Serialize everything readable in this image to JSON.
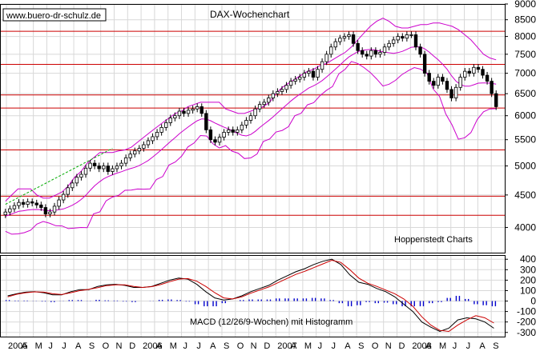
{
  "watermark": "www.buero-dr-schulz.de",
  "colors": {
    "background": "#ffffff",
    "grid": "#d8d8d8",
    "candle": "#000000",
    "bollinger": "#cc00cc",
    "horizontal_lines": "#cc0000",
    "trend_line": "#00aa00",
    "macd_line": "#000000",
    "signal_line": "#cc0000",
    "histogram": "#0000cc"
  },
  "chart_data": [
    {
      "type": "candlestick",
      "title": "DAX-Wochenchart",
      "source_label": "Hoppenstedt Charts",
      "x_ticks": [
        "2005",
        "A",
        "M",
        "J",
        "J",
        "A",
        "S",
        "O",
        "N",
        "D",
        "2006",
        "A",
        "M",
        "J",
        "J",
        "A",
        "S",
        "O",
        "N",
        "D",
        "2007",
        "A",
        "M",
        "J",
        "J",
        "A",
        "S",
        "O",
        "N",
        "D",
        "2008",
        "A",
        "M",
        "J",
        "J",
        "A",
        "S"
      ],
      "y_ticks": [
        4000,
        4500,
        5000,
        5500,
        6000,
        6500,
        7000,
        7500,
        8000,
        8500,
        9000
      ],
      "y_scale": "log",
      "ylim": [
        3650,
        9000
      ],
      "horizontal_levels": [
        4180,
        4480,
        5300,
        6170,
        6470,
        7230,
        8150
      ],
      "trend_line": {
        "from": [
          "2005-01",
          4350
        ],
        "to": [
          "2005-12",
          5330
        ]
      },
      "weekly_close": [
        4230,
        4280,
        4330,
        4380,
        4350,
        4390,
        4370,
        4340,
        4300,
        4200,
        4230,
        4320,
        4420,
        4510,
        4620,
        4700,
        4800,
        4850,
        4960,
        5050,
        5000,
        4950,
        5000,
        4900,
        4950,
        5000,
        5050,
        5150,
        5220,
        5280,
        5330,
        5400,
        5480,
        5560,
        5650,
        5750,
        5850,
        5950,
        6000,
        6100,
        6050,
        6120,
        6150,
        6200,
        6050,
        5700,
        5500,
        5450,
        5550,
        5650,
        5700,
        5650,
        5700,
        5800,
        5900,
        6000,
        6150,
        6250,
        6300,
        6400,
        6500,
        6550,
        6600,
        6700,
        6800,
        6850,
        6900,
        7000,
        7050,
        6900,
        7100,
        7300,
        7500,
        7700,
        7850,
        7950,
        8000,
        8050,
        7800,
        7600,
        7500,
        7450,
        7600,
        7500,
        7550,
        7700,
        7800,
        7900,
        8000,
        7950,
        8050,
        8050,
        7700,
        7500,
        7000,
        6800,
        6700,
        6900,
        6800,
        6600,
        6400,
        6650,
        6900,
        7050,
        7000,
        7150,
        7100,
        6950,
        6800,
        6500,
        6200
      ],
      "bollinger_upper": [
        4400,
        4500,
        4600,
        4600,
        4600,
        4500,
        4450,
        4450,
        4500,
        4550,
        4650,
        4800,
        4900,
        5050,
        5150,
        5250,
        5250,
        5250,
        5280,
        5300,
        5350,
        5450,
        5550,
        5650,
        5750,
        5850,
        5950,
        6050,
        6100,
        6200,
        6250,
        6300,
        6300,
        6300,
        6300,
        6150,
        6100,
        6050,
        6050,
        6100,
        6150,
        6200,
        6300,
        6500,
        6650,
        6750,
        6850,
        6950,
        7050,
        7100,
        7200,
        7250,
        7350,
        7450,
        7550,
        7700,
        7900,
        8100,
        8300,
        8450,
        8550,
        8450,
        8300,
        8250,
        8250,
        8300,
        8350,
        8350,
        8400,
        8400,
        8350,
        8300,
        8200,
        8050,
        7900,
        7700,
        7500,
        7400,
        7350
      ]
    },
    {
      "type": "line",
      "title": "MACD (12/26/9-Wochen) mit Histogramm",
      "y_ticks": [
        -300,
        -200,
        -100,
        0,
        100,
        200,
        300,
        400
      ],
      "ylim": [
        -340,
        440
      ],
      "series": [
        {
          "values": [
            50,
            70,
            85,
            90,
            80,
            60,
            60,
            90,
            110,
            110,
            140,
            155,
            160,
            150,
            130,
            130,
            140,
            170,
            200,
            220,
            210,
            160,
            90,
            30,
            10,
            20,
            50,
            90,
            120,
            150,
            200,
            240,
            280,
            310,
            350,
            380,
            400,
            350,
            250,
            180,
            160,
            120,
            90,
            40,
            -30,
            -100,
            -200,
            -250,
            -290,
            -260,
            -180,
            -160,
            -170,
            -200,
            -260
          ]
        },
        {
          "values": [
            40,
            65,
            80,
            88,
            85,
            70,
            62,
            80,
            100,
            112,
            128,
            148,
            155,
            155,
            140,
            130,
            138,
            158,
            185,
            210,
            215,
            190,
            140,
            80,
            30,
            20,
            40,
            75,
            105,
            135,
            175,
            215,
            255,
            285,
            320,
            355,
            390,
            370,
            300,
            220,
            170,
            140,
            105,
            70,
            20,
            -50,
            -150,
            -230,
            -280,
            -290,
            -230,
            -180,
            -140,
            -160,
            -210
          ]
        }
      ],
      "histogram": [
        10,
        5,
        5,
        2,
        -5,
        -10,
        -2,
        10,
        10,
        -2,
        12,
        7,
        5,
        -5,
        -10,
        0,
        2,
        12,
        15,
        10,
        -5,
        -30,
        -50,
        -50,
        -20,
        0,
        10,
        15,
        15,
        15,
        25,
        25,
        25,
        25,
        30,
        25,
        10,
        -20,
        -50,
        -40,
        -10,
        -20,
        -15,
        -30,
        -50,
        -50,
        -50,
        -20,
        -10,
        30,
        50,
        20,
        -30,
        -40,
        -50
      ]
    }
  ]
}
